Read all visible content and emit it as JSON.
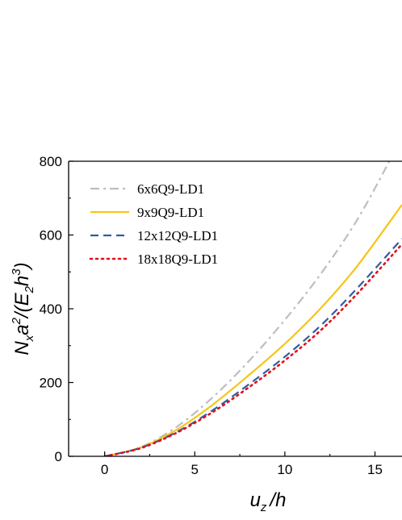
{
  "chart_data": {
    "type": "line",
    "title": "",
    "xlabel_main": "u",
    "xlabel_sub": "z",
    "xlabel_tail": "/h",
    "ylabel_parts": {
      "n": "N",
      "nsub": "x",
      "a": "a",
      "asup": "2",
      "mid": "/(E",
      "esub": "2",
      "h": "h",
      "hsup": "3",
      "end": ")"
    },
    "xlim": [
      -2,
      16.5
    ],
    "ylim": [
      0,
      800
    ],
    "xticks": [
      0,
      5,
      10,
      15
    ],
    "yticks": [
      0,
      200,
      400,
      600,
      800
    ],
    "xtick_labels": [
      "0",
      "5",
      "10",
      "15"
    ],
    "ytick_labels": [
      "0",
      "200",
      "400",
      "600",
      "800"
    ],
    "grid": false,
    "legend_position": "top-left",
    "series": [
      {
        "name": "6x6Q9-LD1",
        "color": "#bebebe",
        "dash": "dashdot",
        "x": [
          0,
          2,
          4,
          6,
          8,
          10,
          12,
          14,
          15.8
        ],
        "y": [
          0,
          25,
          80,
          160,
          258,
          370,
          495,
          640,
          800
        ]
      },
      {
        "name": "9x9Q9-LD1",
        "color": "#f5c518",
        "dash": "solid",
        "x": [
          0,
          2,
          4,
          6,
          8,
          10,
          12,
          14,
          16.5
        ],
        "y": [
          0,
          24,
          72,
          140,
          220,
          305,
          402,
          515,
          682
        ]
      },
      {
        "name": "12x12Q9-LD1",
        "color": "#2e5e9e",
        "dash": "dash",
        "x": [
          0,
          2,
          4,
          6,
          8,
          10,
          12,
          14,
          16.5
        ],
        "y": [
          0,
          23,
          66,
          125,
          195,
          270,
          355,
          455,
          590
        ]
      },
      {
        "name": "18x18Q9-LD1",
        "color": "#e0101e",
        "dash": "dot",
        "x": [
          0,
          2,
          4,
          6,
          8,
          10,
          12,
          14,
          16.5
        ],
        "y": [
          0,
          22,
          64,
          120,
          187,
          260,
          342,
          440,
          575
        ]
      }
    ]
  }
}
